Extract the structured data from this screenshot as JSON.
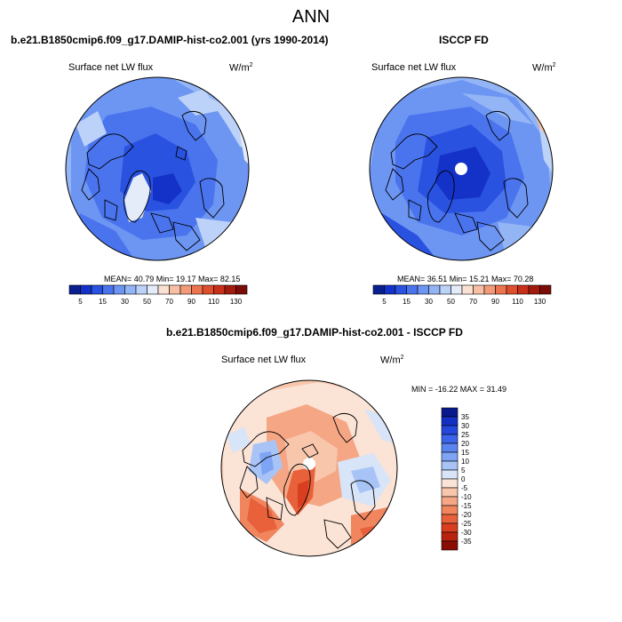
{
  "page_title": "ANN",
  "top_left": {
    "heading": "b.e21.B1850cmip6.f09_g17.DAMIP-hist-co2.001 (yrs 1990-2014)",
    "variable": "Surface net LW flux",
    "units": "W/m",
    "units_sup": "2",
    "stats": "MEAN=  40.79   Min=  19.17   Max=  82.15"
  },
  "top_right": {
    "heading": "ISCCP FD",
    "variable": "Surface net LW flux",
    "units": "W/m",
    "units_sup": "2",
    "stats": "MEAN=  36.51   Min=  15.21   Max=  70.28"
  },
  "bottom": {
    "heading": "b.e21.B1850cmip6.f09_g17.DAMIP-hist-co2.001 - ISCCP FD",
    "variable": "Surface net LW flux",
    "units": "W/m",
    "units_sup": "2",
    "stats": "MIN = -16.22 MAX =  31.49"
  },
  "colorbar_h": {
    "colors": [
      "#0a1f8f",
      "#1432c8",
      "#2a52e0",
      "#4a74ee",
      "#6d95f2",
      "#93b5f5",
      "#bcd2f8",
      "#e4ecfa",
      "#fbe1d2",
      "#f7c0a3",
      "#f39a78",
      "#ec7450",
      "#e04e2c",
      "#c8301a",
      "#a31a0e",
      "#7c0d06"
    ],
    "tick_labels": [
      "5",
      "15",
      "30",
      "50",
      "70",
      "90",
      "110",
      "130"
    ]
  },
  "colorbar_v": {
    "colors": [
      "#0a1a8c",
      "#1430c4",
      "#2448dc",
      "#3c64ea",
      "#5a84f0",
      "#7ea4f4",
      "#a8c4f6",
      "#d8e4f8",
      "#fbe3d6",
      "#f8c6ab",
      "#f5a684",
      "#f0855e",
      "#e8613b",
      "#d83e1f",
      "#b8220f",
      "#8a0d05"
    ],
    "tick_labels": [
      "35",
      "30",
      "25",
      "20",
      "15",
      "10",
      "5",
      "0",
      "-5",
      "-10",
      "-15",
      "-20",
      "-25",
      "-30",
      "-35"
    ]
  }
}
